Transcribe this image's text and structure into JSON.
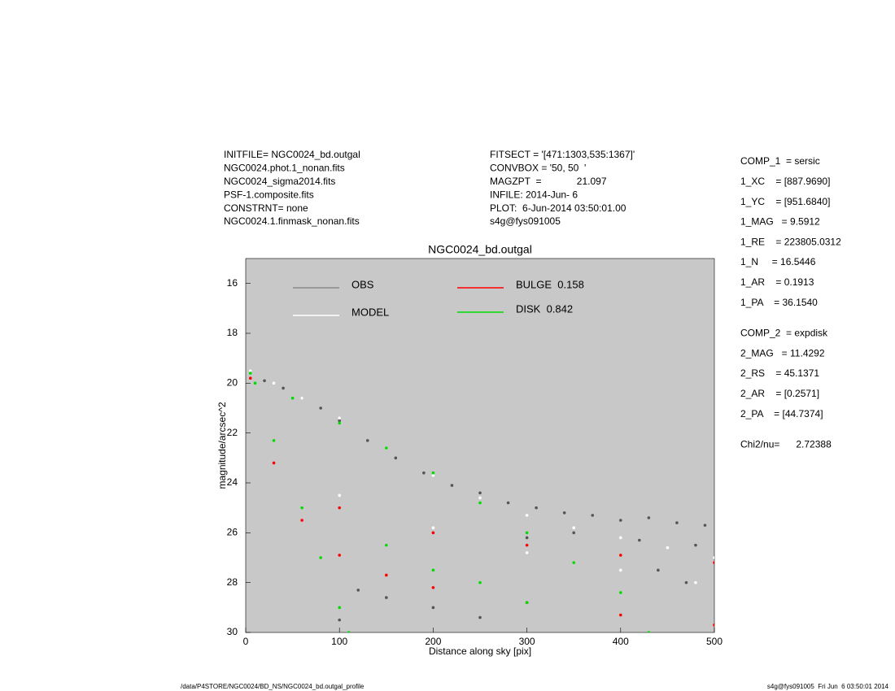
{
  "header": {
    "left": [
      "INITFILE= NGC0024_bd.outgal",
      "NGC0024.phot.1_nonan.fits",
      "NGC0024_sigma2014.fits",
      "PSF-1.composite.fits",
      "CONSTRNT= none",
      "NGC0024.1.finmask_nonan.fits"
    ],
    "middle": [
      "FITSECT = '[471:1303,535:1367]'",
      "CONVBOX = '50, 50  '",
      "MAGZPT  =             21.097",
      "INFILE: 2014-Jun- 6",
      "PLOT:  6-Jun-2014 03:50:01.00",
      "s4g@fys091005"
    ],
    "right": [
      [
        "COMP_1  = sersic",
        "1_XC    = [887.9690]",
        "1_YC    = [951.6840]",
        "1_MAG   = 9.5912",
        "1_RE    = 223805.0312",
        "1_N     = 16.5446",
        "1_AR    = 0.1913",
        "1_PA    = 36.1540"
      ],
      [
        "COMP_2  = expdisk",
        "2_MAG   = 11.4292",
        "2_RS    = 45.1371",
        "2_AR    = [0.2571]",
        "2_PA    = [44.7374]"
      ],
      [
        "Chi2/nu=      2.72388"
      ]
    ]
  },
  "chart_data": {
    "type": "scatter",
    "title": "NGC0024_bd.outgal",
    "x_label": "Distance along sky [pix]",
    "y_label": "magnitude/arcsec^2",
    "xlim": [
      0,
      500
    ],
    "ylim": [
      30,
      15
    ],
    "xticks": [
      0,
      100,
      200,
      300,
      400,
      500
    ],
    "yticks": [
      16,
      18,
      20,
      22,
      24,
      26,
      28,
      30
    ],
    "background": "#c8c8c8",
    "series": [
      {
        "name": "OBS",
        "color": "#555555",
        "legend_color": "#8a8a8a",
        "x": [
          5,
          20,
          40,
          60,
          80,
          100,
          130,
          160,
          190,
          220,
          250,
          280,
          310,
          340,
          370,
          400,
          430,
          460,
          490,
          300,
          350,
          420,
          480,
          120,
          150,
          200,
          100,
          250,
          440,
          470
        ],
        "values": [
          19.5,
          19.9,
          20.2,
          20.6,
          21.0,
          21.5,
          22.3,
          23.0,
          23.6,
          24.1,
          24.4,
          24.8,
          25.0,
          25.2,
          25.3,
          25.5,
          25.4,
          25.6,
          25.7,
          26.2,
          26.0,
          26.3,
          26.5,
          28.3,
          28.6,
          29.0,
          29.5,
          29.4,
          27.5,
          28.0
        ]
      },
      {
        "name": "MODEL",
        "color": "#ffffff",
        "legend_color": "#ffffff",
        "x": [
          5,
          30,
          60,
          100,
          150,
          200,
          250,
          300,
          350,
          400,
          450,
          500,
          100,
          200,
          300,
          400,
          480
        ],
        "values": [
          19.5,
          20.0,
          20.6,
          21.4,
          22.6,
          23.7,
          24.6,
          25.3,
          25.8,
          26.2,
          26.6,
          27.0,
          24.5,
          25.8,
          26.8,
          27.5,
          28.0
        ]
      },
      {
        "name": "BULGE  0.158",
        "color": "#ff0000",
        "legend_color": "#ff0000",
        "x": [
          5,
          30,
          60,
          100,
          150,
          200,
          300,
          400,
          500,
          100,
          200,
          300,
          400,
          500
        ],
        "values": [
          19.8,
          23.2,
          25.5,
          26.9,
          27.7,
          28.2,
          28.8,
          29.3,
          29.7,
          25.0,
          26.0,
          26.5,
          26.9,
          27.2
        ]
      },
      {
        "name": "DISK  0.842",
        "color": "#00dd00",
        "legend_color": "#00dd00",
        "x": [
          5,
          50,
          100,
          150,
          200,
          250,
          300,
          350,
          400,
          430,
          10,
          30,
          60,
          80,
          100,
          110,
          150,
          200,
          250,
          300
        ],
        "values": [
          19.6,
          20.6,
          21.6,
          22.6,
          23.6,
          24.8,
          26.0,
          27.2,
          28.4,
          30,
          20.0,
          22.3,
          25.0,
          27.0,
          29.0,
          30,
          26.5,
          27.5,
          28.0,
          28.8
        ]
      }
    ]
  },
  "footer": {
    "left": "/data/P4STORE/NGC0024/BD_NS/NGC0024_bd.outgal_profile",
    "right": "s4g@fys091005  Fri Jun  6 03:50:01 2014"
  }
}
